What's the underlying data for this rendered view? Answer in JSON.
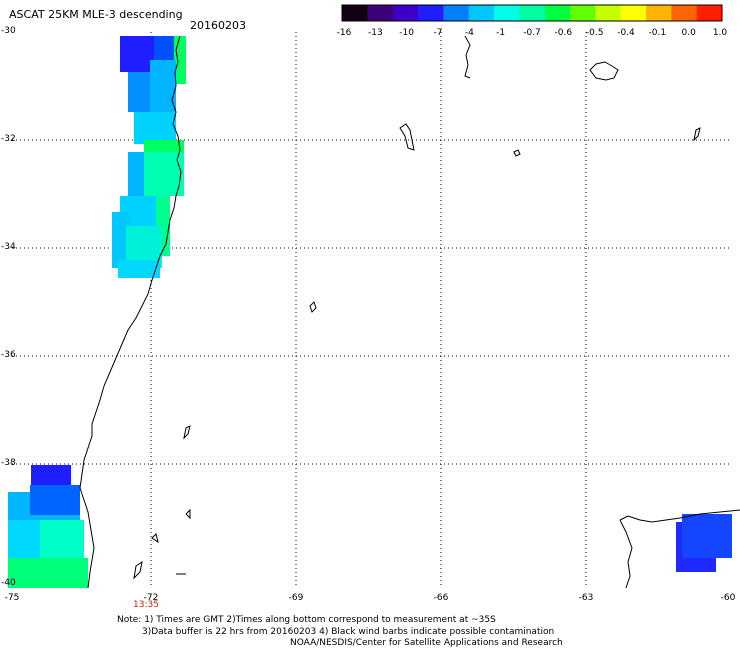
{
  "header": {
    "title": "ASCAT 25KM MLE-3 descending",
    "date": "20160203"
  },
  "colorbar": {
    "labels": [
      "-16",
      "-13",
      "-10",
      "-7",
      "-4",
      "-1",
      "-0.7",
      "-0.6",
      "-0.5",
      "-0.4",
      "-0.1",
      "0.0",
      "1.0"
    ],
    "colors": [
      "#140014",
      "#3c0078",
      "#3c00c8",
      "#1e1eff",
      "#0080ff",
      "#00c8ff",
      "#00ffe6",
      "#00ffa0",
      "#00ff3c",
      "#64ff00",
      "#c8ff00",
      "#ffff00",
      "#ffb400",
      "#ff6400",
      "#ff1e00"
    ]
  },
  "axes": {
    "y_labels": [
      "-30",
      "-32",
      "-34",
      "-36",
      "-38",
      "-40"
    ],
    "x_labels": [
      "-75",
      "-72",
      "-69",
      "-66",
      "-63",
      "-60"
    ],
    "time_label": "13:35"
  },
  "notes": {
    "line1": "Note: 1) Times are GMT 2)Times along bottom correspond to measurement at ~35S",
    "line2": "3)Data buffer is 22 hrs from 20160203 4) Black wind barbs indicate possible contamination",
    "line3": "NOAA/NESDIS/Center for Satellite Applications and Research"
  }
}
